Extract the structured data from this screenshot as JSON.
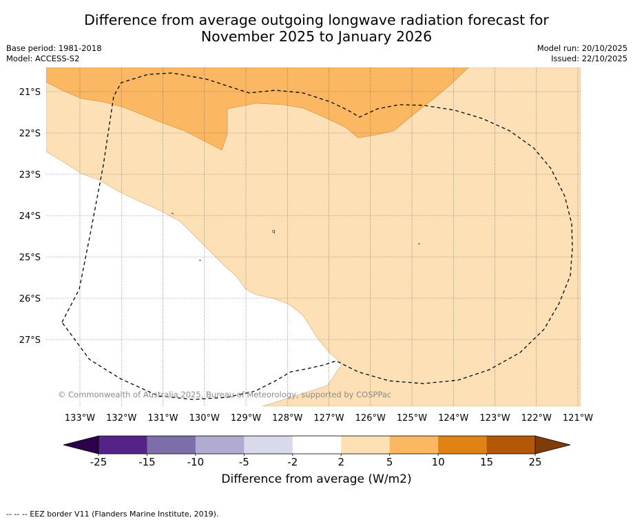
{
  "title_line1": "Difference from average outgoing longwave radiation forecast for",
  "title_line2": "November 2025 to January 2026",
  "meta": {
    "base_period": "Base period: 1981-2018",
    "model": "Model: ACCESS-S2",
    "model_run": "Model run: 20/10/2025",
    "issued": "Issued: 22/10/2025"
  },
  "map": {
    "lat_labels": [
      "21°S",
      "22°S",
      "23°S",
      "24°S",
      "25°S",
      "26°S",
      "27°S"
    ],
    "lon_labels": [
      "133°W",
      "132°W",
      "131°W",
      "130°W",
      "129°W",
      "128°W",
      "127°W",
      "126°W",
      "125°W",
      "124°W",
      "123°W",
      "122°W",
      "121°W"
    ],
    "copyright": "© Commonwealth of Australia 2025, Bureau of Meteorology, supported by COSPPac",
    "marker": "q"
  },
  "colorbar": {
    "ticks": [
      "-25",
      "-15",
      "-10",
      "-5",
      "-2",
      "2",
      "5",
      "10",
      "15",
      "25"
    ],
    "colors": [
      "#552388",
      "#7d6da9",
      "#b1aad1",
      "#d9d9ec",
      "#ffffff",
      "#fde0b6",
      "#fbb762",
      "#e08214",
      "#b35806"
    ],
    "under_color": "#2d004b",
    "over_color": "#7f3b08",
    "label": "Difference from average (W/m2)"
  },
  "footnote": "--  --  -- EEZ border V11 (Flanders Marine Institute, 2019)."
}
